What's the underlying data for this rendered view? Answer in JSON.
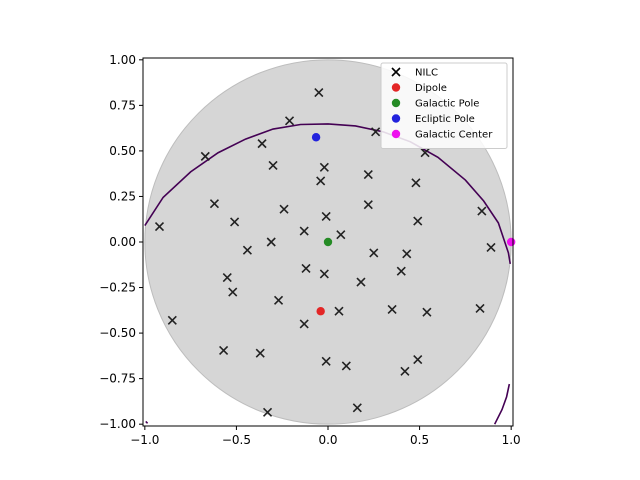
{
  "chart_data": {
    "type": "scatter",
    "title": "",
    "xlabel": "",
    "ylabel": "",
    "xlim": [
      -1.0,
      1.0
    ],
    "ylim": [
      -1.0,
      1.0
    ],
    "xticks": [
      -1.0,
      -0.5,
      0.0,
      0.5,
      1.0
    ],
    "yticks": [
      -1.0,
      -0.75,
      -0.5,
      -0.25,
      0.0,
      0.25,
      0.5,
      0.75,
      1.0
    ],
    "xtick_labels": [
      "−1.0",
      "−0.5",
      "0.0",
      "0.5",
      "1.0"
    ],
    "ytick_labels": [
      "−1.00",
      "−0.75",
      "−0.50",
      "−0.25",
      "0.00",
      "0.25",
      "0.50",
      "0.75",
      "1.00"
    ],
    "grid": false,
    "legend_position": "top-right",
    "background_disk": {
      "center": [
        0,
        0
      ],
      "radius": 1.0,
      "color": "#d6d6d6",
      "edge_color": "#bdbdbd"
    },
    "curve_color": "#440154",
    "curves": [
      {
        "points": [
          [
            -1.0,
            0.09
          ],
          [
            -0.9,
            0.245
          ],
          [
            -0.75,
            0.385
          ],
          [
            -0.6,
            0.49
          ],
          [
            -0.45,
            0.565
          ],
          [
            -0.3,
            0.62
          ],
          [
            -0.15,
            0.645
          ],
          [
            0.0,
            0.648
          ],
          [
            0.15,
            0.637
          ],
          [
            0.3,
            0.605
          ],
          [
            0.45,
            0.55
          ],
          [
            0.6,
            0.465
          ],
          [
            0.75,
            0.34
          ],
          [
            0.85,
            0.225
          ],
          [
            0.93,
            0.105
          ],
          [
            0.985,
            -0.06
          ],
          [
            0.995,
            -0.12
          ]
        ]
      },
      {
        "points": [
          [
            0.91,
            -1.0
          ],
          [
            0.95,
            -0.92
          ],
          [
            0.975,
            -0.85
          ],
          [
            0.99,
            -0.78
          ]
        ]
      },
      {
        "points": [
          [
            -0.995,
            -0.985
          ],
          [
            -0.985,
            -0.995
          ]
        ]
      }
    ],
    "series": [
      {
        "name": "NILC",
        "marker": "x",
        "color": "#222222",
        "points": [
          [
            -0.05,
            0.82
          ],
          [
            -0.21,
            0.665
          ],
          [
            0.26,
            0.605
          ],
          [
            -0.36,
            0.54
          ],
          [
            -0.67,
            0.47
          ],
          [
            0.53,
            0.49
          ],
          [
            -0.3,
            0.42
          ],
          [
            -0.02,
            0.41
          ],
          [
            0.22,
            0.37
          ],
          [
            -0.04,
            0.335
          ],
          [
            0.48,
            0.325
          ],
          [
            -0.62,
            0.21
          ],
          [
            0.22,
            0.205
          ],
          [
            -0.24,
            0.18
          ],
          [
            0.84,
            0.17
          ],
          [
            -0.51,
            0.11
          ],
          [
            -0.01,
            0.14
          ],
          [
            0.49,
            0.115
          ],
          [
            -0.92,
            0.085
          ],
          [
            -0.13,
            0.06
          ],
          [
            0.07,
            0.04
          ],
          [
            -0.31,
            0.0
          ],
          [
            -0.44,
            -0.045
          ],
          [
            0.25,
            -0.06
          ],
          [
            0.43,
            -0.065
          ],
          [
            0.89,
            -0.03
          ],
          [
            -0.12,
            -0.145
          ],
          [
            0.4,
            -0.16
          ],
          [
            -0.02,
            -0.175
          ],
          [
            -0.55,
            -0.195
          ],
          [
            0.18,
            -0.22
          ],
          [
            -0.52,
            -0.275
          ],
          [
            -0.27,
            -0.32
          ],
          [
            0.35,
            -0.37
          ],
          [
            0.06,
            -0.38
          ],
          [
            0.54,
            -0.385
          ],
          [
            0.83,
            -0.365
          ],
          [
            -0.85,
            -0.43
          ],
          [
            -0.13,
            -0.45
          ],
          [
            -0.57,
            -0.595
          ],
          [
            -0.37,
            -0.61
          ],
          [
            -0.01,
            -0.655
          ],
          [
            0.49,
            -0.645
          ],
          [
            0.1,
            -0.68
          ],
          [
            0.42,
            -0.71
          ],
          [
            0.16,
            -0.91
          ],
          [
            -0.33,
            -0.935
          ]
        ]
      },
      {
        "name": "Dipole",
        "marker": "o",
        "color": "#e32626",
        "points": [
          [
            -0.04,
            -0.38
          ]
        ]
      },
      {
        "name": "Galactic Pole",
        "marker": "o",
        "color": "#258b25",
        "points": [
          [
            0.0,
            0.0
          ]
        ]
      },
      {
        "name": "Ecliptic Pole",
        "marker": "o",
        "color": "#2222dd",
        "points": [
          [
            -0.065,
            0.575
          ]
        ]
      },
      {
        "name": "Galactic Center",
        "marker": "o",
        "color": "#ee11ee",
        "points": [
          [
            1.0,
            0.0
          ]
        ]
      }
    ]
  }
}
